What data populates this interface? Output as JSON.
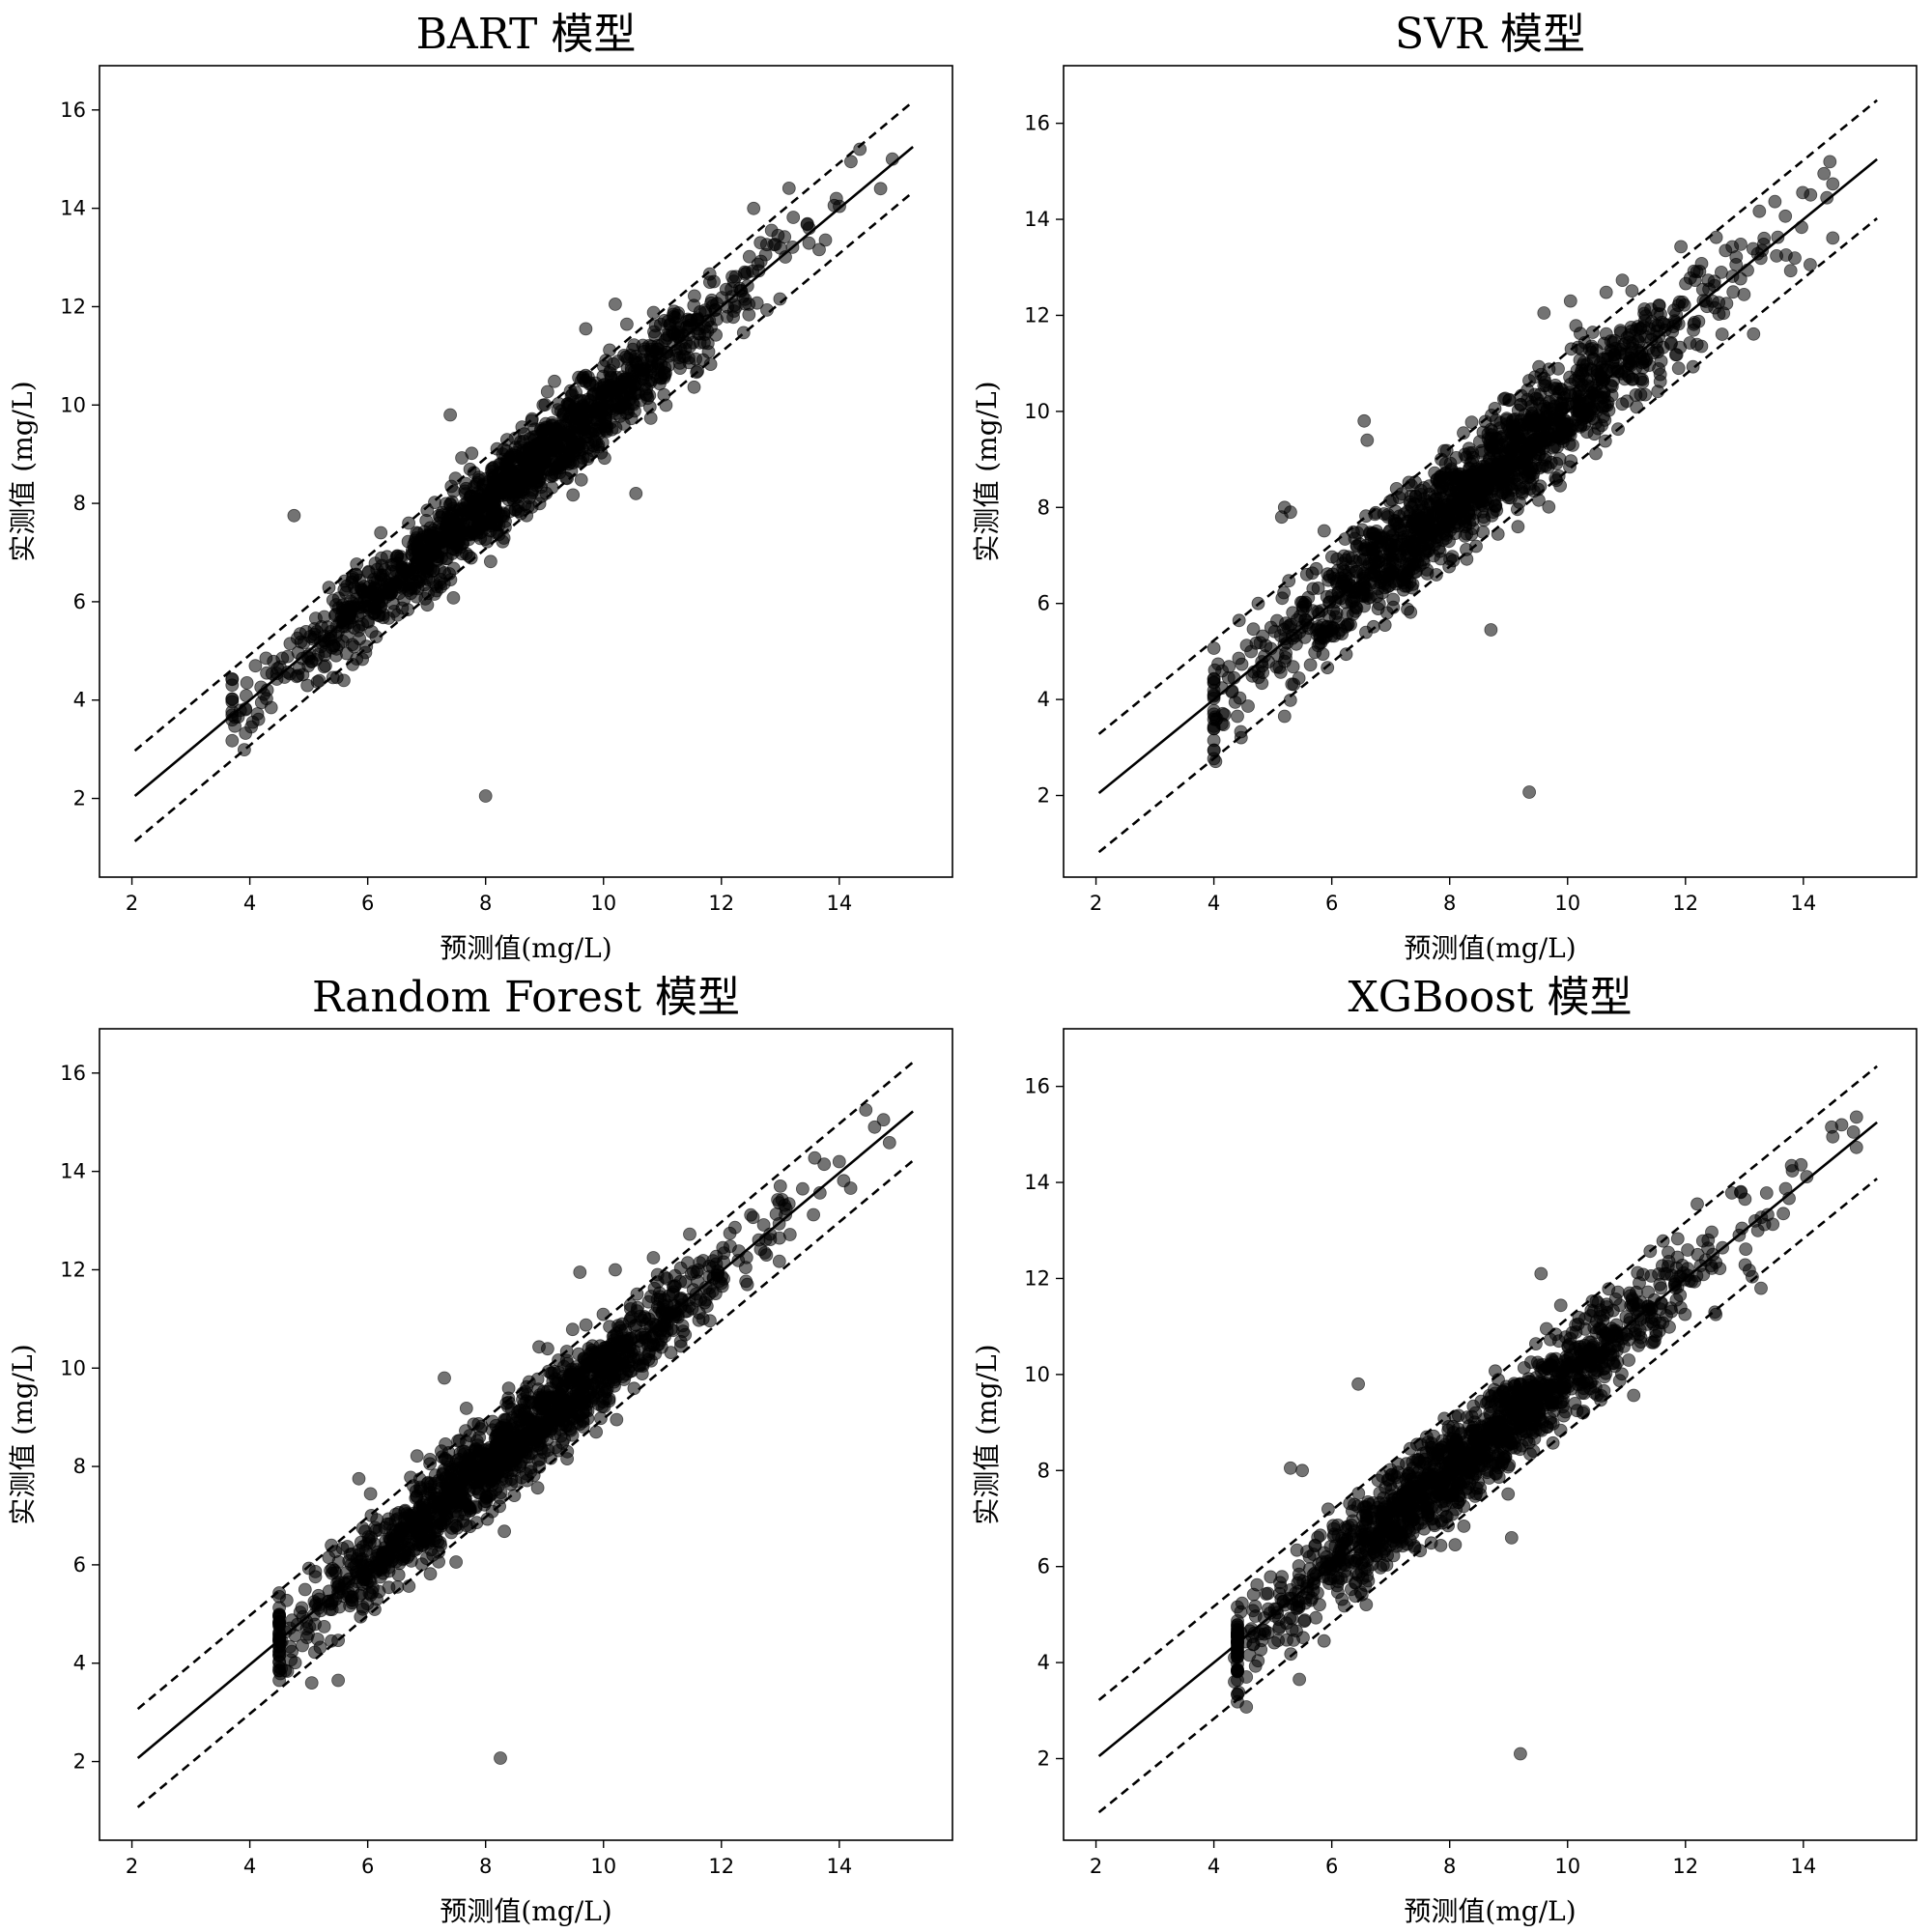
{
  "figure": {
    "background": "#ffffff",
    "point_color": "#000000",
    "point_opacity": 0.55
  },
  "chart_data": [
    {
      "type": "scatter",
      "title": "BART 模型",
      "xlabel": "预测值(mg/L)",
      "ylabel": "实测值 (mg/L)",
      "xlim": [
        1.45,
        15.92
      ],
      "ylim": [
        0.4,
        16.9
      ],
      "xticks": [
        "2",
        "4",
        "6",
        "8",
        "10",
        "12",
        "14"
      ],
      "yticks": [
        "2",
        "4",
        "6",
        "8",
        "10",
        "12",
        "14",
        "16"
      ],
      "grid": false,
      "legend": "none",
      "reference_lines": [
        {
          "style": "solid",
          "x": [
            2.05,
            15.25
          ],
          "y": [
            2.05,
            15.25
          ]
        },
        {
          "style": "dashed",
          "x": [
            2.05,
            15.25
          ],
          "y": [
            2.97,
            16.17
          ]
        },
        {
          "style": "dashed",
          "x": [
            2.05,
            15.25
          ],
          "y": [
            1.13,
            14.33
          ]
        }
      ],
      "scatter_model": {
        "n": 1500,
        "x_mean": 8.4,
        "x_sd": 2.0,
        "x_min": 3.7,
        "x_max": 15.0,
        "noise_sd": 0.42,
        "seed": 11
      },
      "highlight_points": [
        [
          8.0,
          2.05
        ],
        [
          4.75,
          7.75
        ],
        [
          10.55,
          8.2
        ],
        [
          14.35,
          15.2
        ],
        [
          14.9,
          15.0
        ],
        [
          14.7,
          14.4
        ],
        [
          13.95,
          14.2
        ],
        [
          3.75,
          3.65
        ],
        [
          3.95,
          4.35
        ],
        [
          4.05,
          3.55
        ],
        [
          4.2,
          3.95
        ],
        [
          9.7,
          11.55
        ],
        [
          7.4,
          9.8
        ],
        [
          10.2,
          12.05
        ],
        [
          12.85,
          13.55
        ]
      ]
    },
    {
      "type": "scatter",
      "title": "SVR 模型",
      "xlabel": "预测值(mg/L)",
      "ylabel": "实测值 (mg/L)",
      "xlim": [
        1.45,
        15.92
      ],
      "ylim": [
        0.3,
        17.2
      ],
      "xticks": [
        "2",
        "4",
        "6",
        "8",
        "10",
        "12",
        "14"
      ],
      "yticks": [
        "2",
        "4",
        "6",
        "8",
        "10",
        "12",
        "14",
        "16"
      ],
      "grid": false,
      "legend": "none",
      "reference_lines": [
        {
          "style": "solid",
          "x": [
            2.05,
            15.25
          ],
          "y": [
            2.05,
            15.25
          ]
        },
        {
          "style": "dashed",
          "x": [
            2.05,
            15.25
          ],
          "y": [
            3.28,
            16.48
          ]
        },
        {
          "style": "dashed",
          "x": [
            2.05,
            15.25
          ],
          "y": [
            0.82,
            14.02
          ]
        }
      ],
      "scatter_model": {
        "n": 1500,
        "x_mean": 8.4,
        "x_sd": 2.0,
        "x_min": 4.0,
        "x_max": 14.5,
        "noise_sd": 0.55,
        "seed": 23
      },
      "highlight_points": [
        [
          9.35,
          2.07
        ],
        [
          5.2,
          8.0
        ],
        [
          5.15,
          7.8
        ],
        [
          5.3,
          7.9
        ],
        [
          6.55,
          9.8
        ],
        [
          6.6,
          9.4
        ],
        [
          14.45,
          15.2
        ],
        [
          14.35,
          14.95
        ],
        [
          14.4,
          14.45
        ],
        [
          4.05,
          3.6
        ],
        [
          4.4,
          3.65
        ],
        [
          5.2,
          3.65
        ],
        [
          9.6,
          12.05
        ],
        [
          10.05,
          12.3
        ],
        [
          8.7,
          5.45
        ]
      ]
    },
    {
      "type": "scatter",
      "title": "Random Forest 模型",
      "xlabel": "预测值(mg/L)",
      "ylabel": "实测值 (mg/L)",
      "xlim": [
        1.45,
        15.92
      ],
      "ylim": [
        0.4,
        16.9
      ],
      "xticks": [
        "2",
        "4",
        "6",
        "8",
        "10",
        "12",
        "14"
      ],
      "yticks": [
        "2",
        "4",
        "6",
        "8",
        "10",
        "12",
        "14",
        "16"
      ],
      "grid": false,
      "legend": "none",
      "reference_lines": [
        {
          "style": "solid",
          "x": [
            2.1,
            15.25
          ],
          "y": [
            2.07,
            15.22
          ]
        },
        {
          "style": "dashed",
          "x": [
            2.1,
            15.25
          ],
          "y": [
            3.07,
            16.22
          ]
        },
        {
          "style": "dashed",
          "x": [
            2.1,
            15.25
          ],
          "y": [
            1.07,
            14.22
          ]
        }
      ],
      "scatter_model": {
        "n": 1500,
        "x_mean": 8.4,
        "x_sd": 2.0,
        "x_min": 4.5,
        "x_max": 14.9,
        "noise_sd": 0.45,
        "seed": 37
      },
      "highlight_points": [
        [
          8.25,
          2.07
        ],
        [
          7.3,
          9.8
        ],
        [
          5.85,
          7.75
        ],
        [
          14.45,
          15.25
        ],
        [
          14.75,
          15.05
        ],
        [
          14.6,
          14.9
        ],
        [
          14.0,
          14.2
        ],
        [
          4.5,
          3.65
        ],
        [
          4.6,
          3.85
        ],
        [
          5.05,
          3.6
        ],
        [
          5.5,
          3.65
        ],
        [
          9.6,
          11.95
        ],
        [
          10.2,
          12.0
        ],
        [
          13.0,
          13.7
        ]
      ]
    },
    {
      "type": "scatter",
      "title": "XGBoost 模型",
      "xlabel": "预测值(mg/L)",
      "ylabel": "实测值 (mg/L)",
      "xlim": [
        1.45,
        15.92
      ],
      "ylim": [
        0.3,
        17.2
      ],
      "xticks": [
        "2",
        "4",
        "6",
        "8",
        "10",
        "12",
        "14"
      ],
      "yticks": [
        "2",
        "4",
        "6",
        "8",
        "10",
        "12",
        "14",
        "16"
      ],
      "grid": false,
      "legend": "none",
      "reference_lines": [
        {
          "style": "solid",
          "x": [
            2.05,
            15.25
          ],
          "y": [
            2.05,
            15.25
          ]
        },
        {
          "style": "dashed",
          "x": [
            2.05,
            15.25
          ],
          "y": [
            3.22,
            16.42
          ]
        },
        {
          "style": "dashed",
          "x": [
            2.05,
            15.25
          ],
          "y": [
            0.88,
            14.08
          ]
        }
      ],
      "scatter_model": {
        "n": 1500,
        "x_mean": 8.4,
        "x_sd": 2.0,
        "x_min": 4.4,
        "x_max": 14.9,
        "noise_sd": 0.48,
        "seed": 53
      },
      "highlight_points": [
        [
          9.2,
          2.1
        ],
        [
          9.05,
          6.6
        ],
        [
          5.3,
          8.05
        ],
        [
          5.5,
          8.0
        ],
        [
          6.45,
          9.8
        ],
        [
          14.85,
          15.05
        ],
        [
          14.65,
          15.2
        ],
        [
          14.5,
          14.95
        ],
        [
          13.8,
          14.35
        ],
        [
          4.35,
          3.6
        ],
        [
          4.35,
          4.1
        ],
        [
          4.55,
          3.7
        ],
        [
          5.45,
          3.65
        ],
        [
          9.55,
          12.1
        ],
        [
          12.2,
          13.55
        ]
      ]
    }
  ]
}
